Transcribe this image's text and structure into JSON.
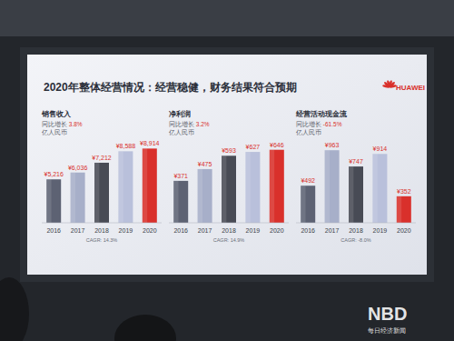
{
  "slide": {
    "title": "2020年整体经营情况：经营稳健，财务结果符合预期",
    "brand": "HUAWEI",
    "watermark": "NBD",
    "watermark_caption": "每日经济新闻"
  },
  "chart_data": [
    {
      "type": "bar",
      "title": "销售收入",
      "subtitle": "同比增长 3.8%",
      "ylabel": "亿人民币",
      "categories": [
        "2016",
        "2017",
        "2018",
        "2019",
        "2020"
      ],
      "values": [
        5216,
        6036,
        7212,
        8588,
        8914
      ],
      "value_labels": [
        "¥5,216",
        "¥6,036",
        "¥7,212",
        "¥8,588",
        "¥8,914"
      ],
      "colors": [
        "#5d6273",
        "#a7afc9",
        "#484b55",
        "#b9c0db",
        "#d9302b"
      ],
      "ylim": [
        0,
        9500
      ],
      "data_labels": true,
      "tick_labels": false,
      "grid": false,
      "annotations": [
        "CAGR: 14.3%"
      ]
    },
    {
      "type": "bar",
      "title": "净利润",
      "subtitle": "同比增长 3.2%",
      "ylabel": "亿人民币",
      "categories": [
        "2016",
        "2017",
        "2018",
        "2019",
        "2020"
      ],
      "values": [
        371,
        475,
        593,
        627,
        646
      ],
      "value_labels": [
        "¥371",
        "¥475",
        "¥593",
        "¥627",
        "¥646"
      ],
      "colors": [
        "#5d6273",
        "#a7afc9",
        "#484b55",
        "#b9c0db",
        "#d9302b"
      ],
      "ylim": [
        0,
        700
      ],
      "data_labels": true,
      "tick_labels": false,
      "grid": false,
      "annotations": [
        "CAGR: 14.9%"
      ]
    },
    {
      "type": "bar",
      "title": "经营活动现金流",
      "subtitle": "同比增长 -61.5%",
      "ylabel": "亿人民币",
      "categories": [
        "2016",
        "2017",
        "2018",
        "2019",
        "2020"
      ],
      "values": [
        492,
        963,
        747,
        914,
        352
      ],
      "value_labels": [
        "¥492",
        "¥963",
        "¥747",
        "¥914",
        "¥352"
      ],
      "colors": [
        "#5d6273",
        "#a7afc9",
        "#484b55",
        "#b9c0db",
        "#d9302b"
      ],
      "ylim": [
        0,
        1050
      ],
      "data_labels": true,
      "tick_labels": false,
      "grid": false,
      "annotations": [
        "CAGR: -8.0%"
      ]
    }
  ]
}
